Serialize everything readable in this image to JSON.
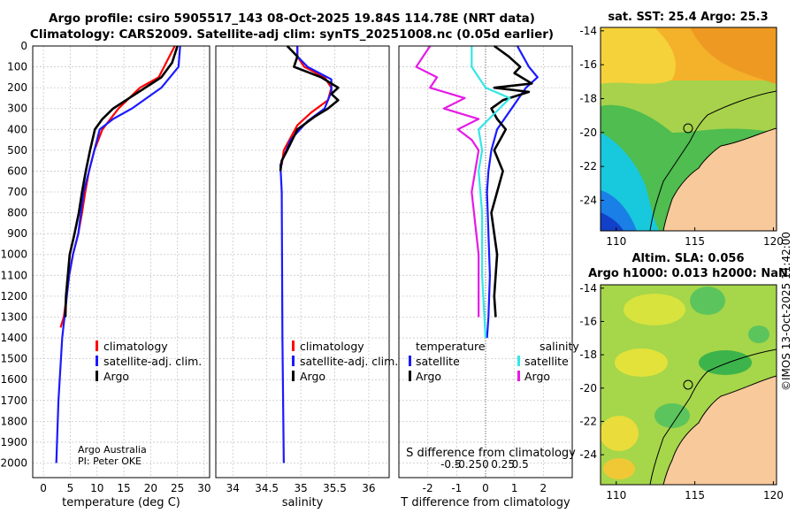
{
  "title_line1": "Argo profile: csiro 5905517_143 08-Oct-2025 19.84S 114.78E (NRT data)",
  "title_line2": "Climatology: CARS2009. Satellite-adj clim: synTS_20251008.nc (0.05d earlier)",
  "credit_line1": "Argo Australia",
  "credit_line2": "PI: Peter OKE",
  "copyright": "©IMOS 13-Oct-2025 11:42:00",
  "colors": {
    "climatology": "#ff0000",
    "satellite": "#1a1aff",
    "argo": "#000000",
    "sat_sal": "#33e6e6",
    "argo_sal": "#e619e6"
  },
  "chart_data": [
    {
      "type": "line",
      "name": "temperature",
      "xlabel": "temperature (deg C)",
      "xlim": [
        -2,
        31
      ],
      "ylim": [
        2070,
        0
      ],
      "xticks": [
        0,
        5,
        10,
        15,
        20,
        25,
        30
      ],
      "yticks": [
        0,
        100,
        200,
        300,
        400,
        500,
        600,
        700,
        800,
        900,
        1000,
        1100,
        1200,
        1300,
        1400,
        1500,
        1600,
        1700,
        1800,
        1900,
        2000
      ],
      "legend": [
        "climatology",
        "satellite-adj. clim.",
        "Argo"
      ],
      "series": [
        {
          "name": "climatology",
          "color": "#ff0000",
          "x": [
            24.5,
            23.5,
            21.5,
            18,
            14,
            11,
            9.5,
            8.5,
            7.8,
            7.2,
            6.5,
            5.5,
            4.8,
            3.8,
            3.2
          ],
          "y": [
            0,
            50,
            150,
            200,
            300,
            400,
            500,
            600,
            700,
            800,
            900,
            1000,
            1100,
            1300,
            1350
          ]
        },
        {
          "name": "satellite-adj. clim.",
          "color": "#1a1aff",
          "x": [
            25.5,
            25.2,
            22,
            16.5,
            13,
            10.5,
            9.5,
            8.5,
            7.5,
            7,
            6.5,
            5.5,
            4.8,
            3.5,
            2.8,
            2.4
          ],
          "y": [
            0,
            100,
            200,
            300,
            350,
            400,
            500,
            600,
            700,
            800,
            900,
            1000,
            1100,
            1400,
            1700,
            2000
          ]
        },
        {
          "name": "Argo",
          "color": "#000000",
          "x": [
            25,
            24,
            22,
            19,
            16,
            13,
            11,
            9.6,
            8.7,
            7.9,
            7.2,
            6.6,
            5.8,
            4.9,
            4.2,
            4.1
          ],
          "y": [
            0,
            80,
            150,
            200,
            250,
            300,
            350,
            400,
            500,
            600,
            700,
            800,
            900,
            1000,
            1200,
            1300
          ]
        }
      ]
    },
    {
      "type": "line",
      "name": "salinity",
      "xlabel": "salinity",
      "xlim": [
        33.75,
        36.3
      ],
      "ylim": [
        2070,
        0
      ],
      "xticks": [
        34,
        34.5,
        35,
        35.5,
        36
      ],
      "legend": [
        "climatology",
        "satellite-adj. clim.",
        "Argo"
      ],
      "series": [
        {
          "name": "climatology",
          "color": "#ff0000",
          "x": [
            34.95,
            34.95,
            35.05,
            35.35,
            35.45,
            35.4,
            35.15,
            34.95,
            34.75,
            34.72
          ],
          "y": [
            0,
            50,
            100,
            150,
            200,
            260,
            320,
            380,
            500,
            570
          ]
        },
        {
          "name": "satellite-adj. clim.",
          "color": "#1a1aff",
          "x": [
            34.95,
            34.95,
            35.1,
            35.45,
            35.45,
            35.35,
            35.1,
            34.85,
            34.7,
            34.72,
            34.73,
            34.75
          ],
          "y": [
            0,
            50,
            100,
            160,
            220,
            300,
            360,
            450,
            570,
            700,
            1400,
            2000
          ]
        },
        {
          "name": "Argo",
          "color": "#000000",
          "x": [
            34.8,
            34.95,
            34.9,
            35.3,
            35.55,
            35.45,
            35.55,
            35.4,
            35.2,
            34.95,
            34.8,
            34.72,
            34.7
          ],
          "y": [
            0,
            50,
            100,
            150,
            200,
            230,
            260,
            300,
            340,
            400,
            500,
            550,
            600
          ]
        }
      ]
    },
    {
      "type": "line",
      "name": "differences",
      "xlabel": "T difference from climatology",
      "x2label": "S difference from climatology",
      "xlim": [
        -3,
        3
      ],
      "ylim": [
        2070,
        0
      ],
      "xticks": [
        -2,
        -1,
        0,
        1,
        2
      ],
      "x2ticks": [
        -0.5,
        -0.25,
        0,
        0.25,
        0.5
      ],
      "legend_left_title": "temperature",
      "legend_right_title": "salinity",
      "legend_left": [
        "satellite",
        "Argo"
      ],
      "legend_right": [
        "satellite",
        "Argo"
      ],
      "series": [
        {
          "name": "satellite T",
          "color": "#1a1aff",
          "x": [
            1.1,
            1.3,
            1.5,
            1.8,
            1.4,
            0.9,
            0.4,
            0.2,
            0.1,
            0.05,
            0.1,
            0.15,
            0.1,
            0.05
          ],
          "y": [
            0,
            50,
            100,
            150,
            200,
            300,
            400,
            500,
            600,
            700,
            900,
            1100,
            1300,
            1400
          ]
        },
        {
          "name": "Argo T",
          "color": "#000000",
          "x": [
            0.3,
            0.8,
            1.2,
            1.0,
            1.6,
            0.3,
            1.5,
            0.6,
            0.2,
            0.4,
            0.7,
            0.5,
            0.3,
            0.6,
            0.2,
            0.4,
            0.3,
            0.35
          ],
          "y": [
            0,
            50,
            100,
            130,
            180,
            200,
            220,
            260,
            300,
            350,
            400,
            450,
            500,
            600,
            800,
            1000,
            1200,
            1300
          ]
        },
        {
          "name": "satellite S",
          "color": "#33e6e6",
          "x": [
            -0.2,
            -0.2,
            0,
            0.35,
            0.2,
            0.05,
            -0.1,
            -0.05,
            -0.1,
            -0.05,
            -0.05,
            0
          ],
          "y": [
            0,
            100,
            200,
            250,
            300,
            350,
            400,
            500,
            600,
            800,
            1100,
            1400
          ]
        },
        {
          "name": "Argo S",
          "color": "#e619e6",
          "x": [
            -0.8,
            -0.9,
            -1.0,
            -0.7,
            -0.8,
            -0.3,
            -0.6,
            -0.1,
            -0.4,
            -0.2,
            -0.1,
            -0.2,
            -0.1,
            -0.1
          ],
          "y": [
            0,
            50,
            100,
            150,
            200,
            250,
            300,
            350,
            400,
            450,
            500,
            700,
            1000,
            1300
          ]
        }
      ]
    },
    {
      "type": "heatmap",
      "name": "sst_map",
      "title": "sat. SST: 25.4 Argo: 25.3",
      "xticks": [
        110,
        115,
        120
      ],
      "yticks": [
        -14,
        -16,
        -18,
        -20,
        -22,
        -24
      ],
      "xlim": [
        109,
        120.2
      ],
      "ylim": [
        -25.8,
        -13.8
      ],
      "profile": [
        114.78,
        -19.84
      ]
    },
    {
      "type": "heatmap",
      "name": "sla_map",
      "title1": "Altim. SLA: 0.056",
      "title2": "Argo h1000: 0.013 h2000: NaN",
      "xticks": [
        110,
        115,
        120
      ],
      "yticks": [
        -14,
        -16,
        -18,
        -20,
        -22,
        -24
      ],
      "xlim": [
        109,
        120.2
      ],
      "ylim": [
        -25.8,
        -13.8
      ],
      "profile": [
        114.78,
        -19.84
      ]
    }
  ]
}
